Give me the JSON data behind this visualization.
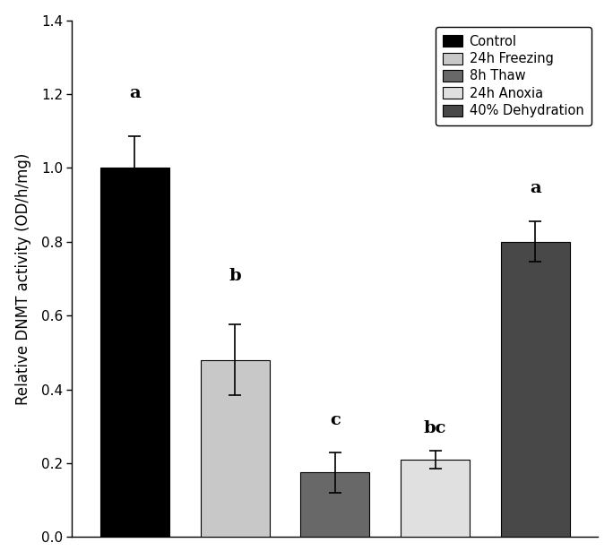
{
  "categories": [
    "Control",
    "24h Freezing",
    "8h Thaw",
    "24h Anoxia",
    "40% Dehydration"
  ],
  "values": [
    1.0,
    0.48,
    0.175,
    0.21,
    0.8
  ],
  "errors": [
    0.085,
    0.095,
    0.055,
    0.025,
    0.055
  ],
  "bar_colors": [
    "#000000",
    "#c8c8c8",
    "#686868",
    "#e0e0e0",
    "#484848"
  ],
  "bar_width": 0.55,
  "x_positions": [
    0.5,
    1.3,
    2.1,
    2.9,
    3.7
  ],
  "ylabel": "Relative DNMT activity (OD/h/mg)",
  "ylim": [
    0.0,
    1.4
  ],
  "yticks": [
    0.0,
    0.2,
    0.4,
    0.6,
    0.8,
    1.0,
    1.2,
    1.4
  ],
  "letters": [
    "a",
    "b",
    "c",
    "bc",
    "a"
  ],
  "letter_offsets": [
    0.095,
    0.11,
    0.065,
    0.038,
    0.068
  ],
  "legend_labels": [
    "Control",
    "24h Freezing",
    "8h Thaw",
    "24h Anoxia",
    "40% Dehydration"
  ],
  "legend_colors": [
    "#000000",
    "#c8c8c8",
    "#686868",
    "#e0e0e0",
    "#484848"
  ],
  "background_color": "#ffffff",
  "fig_width": 6.84,
  "fig_height": 6.25,
  "dpi": 100
}
